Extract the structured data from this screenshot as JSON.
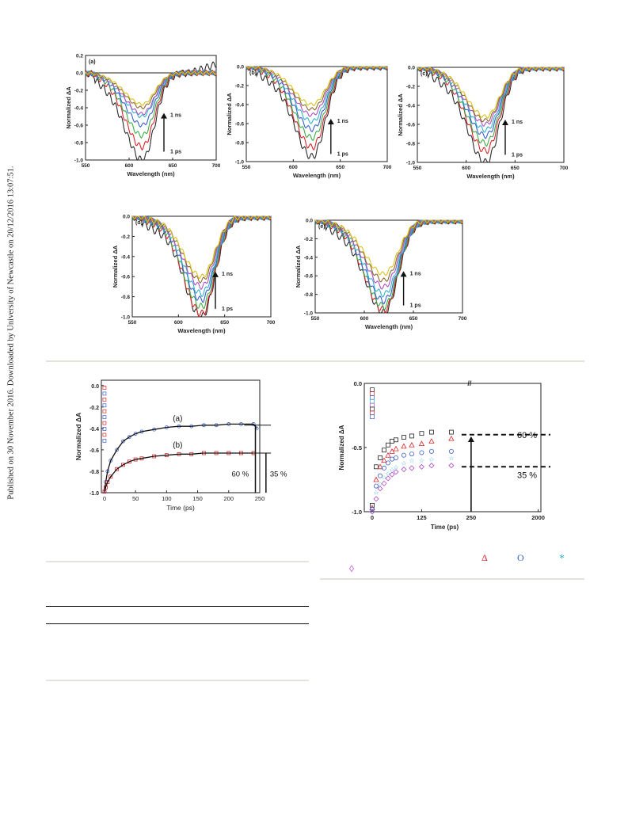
{
  "sidebar_text": "Published on 30 November 2016. Downloaded by University of Newcastle on 20/12/2016 13:07:51.",
  "colors": {
    "series": [
      "#2b2b2b",
      "#d9262b",
      "#3cae4a",
      "#3a5fcd",
      "#35b3c6",
      "#b04fc4",
      "#8b6a2c",
      "#d9c31c"
    ],
    "blue_marker": "#3a5fcd",
    "red_marker": "#d9262b",
    "fit_line": "#111111"
  },
  "figure1": {
    "panels": [
      {
        "label": "(a)",
        "xlabel": "Wavelength (nm)",
        "ylabel": "Normalized ΔA",
        "top_label": "1 ns",
        "bottom_label": "1 ps",
        "xticks": [
          "550",
          "600",
          "650",
          "700"
        ],
        "yticks": [
          "0.2",
          "0.0",
          "-0.2",
          "-0.4",
          "-0.6",
          "-0.8",
          "-1.0"
        ]
      },
      {
        "label": "(b)",
        "xlabel": "Wavelength (nm)",
        "ylabel": "Normalized ΔA",
        "top_label": "1 ns",
        "bottom_label": "1 ps",
        "xticks": [
          "550",
          "600",
          "650",
          "700"
        ],
        "yticks": [
          "0.0",
          "-0.2",
          "-0.4",
          "-0.6",
          "-0.8",
          "-1.0"
        ]
      },
      {
        "label": "(c)",
        "xlabel": "Wavelength (nm)",
        "ylabel": "Normalized ΔA",
        "top_label": "1 ns",
        "bottom_label": "1 ps",
        "xticks": [
          "550",
          "600",
          "650",
          "700"
        ],
        "yticks": [
          "0.0",
          "-0.2",
          "-0.4",
          "-0.6",
          "-0.8",
          "-1.0"
        ]
      },
      {
        "label": "(d)",
        "xlabel": "Wavelength (nm)",
        "ylabel": "Normalized ΔA",
        "top_label": "1 ns",
        "bottom_label": "1 ps",
        "xticks": [
          "550",
          "600",
          "650",
          "700"
        ],
        "yticks": [
          "0.0",
          "-0.2",
          "-0.4",
          "-0.6",
          "-0.8",
          "-1.0"
        ]
      },
      {
        "label": "(e)",
        "xlabel": "Wavelength (nm)",
        "ylabel": "Normalized ΔA",
        "top_label": "1 ns",
        "bottom_label": "1 ps",
        "xticks": [
          "550",
          "600",
          "650",
          "700"
        ],
        "yticks": [
          "0.0",
          "-0.2",
          "-0.4",
          "-0.6",
          "-0.8",
          "-1.0"
        ]
      }
    ]
  },
  "figure2": {
    "xlabel": "Time (ps)",
    "ylabel": "Normalized ΔA",
    "xticks": [
      "0",
      "50",
      "100",
      "150",
      "200",
      "250"
    ],
    "yticks": [
      "0.0",
      "-0.2",
      "-0.4",
      "-0.6",
      "-0.8",
      "-1.0"
    ],
    "label_a": "(a)",
    "label_b": "(b)",
    "pct_60": "60 %",
    "pct_35": "35 %"
  },
  "figure3": {
    "xlabel": "Time (ps)",
    "ylabel": "Normalized ΔA",
    "xticks": [
      "0",
      "125",
      "250",
      "2000"
    ],
    "yticks": [
      "0.0",
      "-0.5",
      "-1.0"
    ],
    "pct_60": "60 %",
    "pct_35": "35 %",
    "break_mark": "//"
  },
  "caption_symbols": {
    "triangle": "Δ",
    "circle": "O",
    "star": "*",
    "diamond": "◊"
  },
  "chart_data": [
    {
      "type": "line",
      "panel": "(a)",
      "xlim": [
        550,
        700
      ],
      "ylim": [
        -1.0,
        0.2
      ],
      "series_minima": [
        -1.0,
        -0.85,
        -0.72,
        -0.6,
        -0.5,
        -0.47,
        -0.4,
        -0.36
      ],
      "minimum_wavelength": 615
    },
    {
      "type": "line",
      "panel": "(b)",
      "xlim": [
        550,
        700
      ],
      "ylim": [
        -1.0,
        0.0
      ],
      "series_minima": [
        -0.95,
        -0.85,
        -0.75,
        -0.66,
        -0.58,
        -0.51,
        -0.45,
        -0.4
      ],
      "minimum_wavelength": 620
    },
    {
      "type": "line",
      "panel": "(c)",
      "xlim": [
        550,
        700
      ],
      "ylim": [
        -1.0,
        0.0
      ],
      "series_minima": [
        -1.0,
        -0.88,
        -0.8,
        -0.72,
        -0.66,
        -0.6,
        -0.56,
        -0.52
      ],
      "minimum_wavelength": 620
    },
    {
      "type": "line",
      "panel": "(d)",
      "xlim": [
        550,
        700
      ],
      "ylim": [
        -1.0,
        0.0
      ],
      "series_minima": [
        -1.0,
        -0.97,
        -0.9,
        -0.83,
        -0.77,
        -0.7,
        -0.64,
        -0.6
      ],
      "minimum_wavelength": 625
    },
    {
      "type": "line",
      "panel": "(e)",
      "xlim": [
        550,
        700
      ],
      "ylim": [
        -1.0,
        0.0
      ],
      "series_minima": [
        -1.0,
        -0.97,
        -0.93,
        -0.87,
        -0.8,
        -0.72,
        -0.65,
        -0.58
      ],
      "minimum_wavelength": 620
    },
    {
      "type": "scatter",
      "title": "",
      "xlabel": "Time (ps)",
      "ylabel": "Normalized ΔA",
      "xlim": [
        -5,
        250
      ],
      "ylim": [
        -1.0,
        0.05
      ],
      "series": [
        {
          "name": "(a)",
          "x": [
            0,
            2,
            5,
            10,
            20,
            30,
            40,
            50,
            60,
            80,
            100,
            120,
            140,
            160,
            180,
            200,
            220,
            240,
            245
          ],
          "y": [
            -0.99,
            -0.9,
            -0.8,
            -0.7,
            -0.6,
            -0.52,
            -0.48,
            -0.45,
            -0.43,
            -0.41,
            -0.39,
            -0.38,
            -0.38,
            -0.37,
            -0.37,
            -0.36,
            -0.36,
            -0.36,
            -0.4
          ]
        },
        {
          "name": "(b)",
          "x": [
            0,
            2,
            5,
            10,
            20,
            30,
            40,
            50,
            60,
            80,
            100,
            120,
            140,
            160,
            180,
            200,
            220,
            240
          ],
          "y": [
            -0.99,
            -0.95,
            -0.9,
            -0.85,
            -0.78,
            -0.74,
            -0.71,
            -0.69,
            -0.68,
            -0.66,
            -0.65,
            -0.64,
            -0.64,
            -0.63,
            -0.63,
            -0.63,
            -0.63,
            -0.63
          ]
        }
      ]
    },
    {
      "type": "scatter",
      "title": "",
      "xlabel": "Time (ps)",
      "ylabel": "Normalized ΔA",
      "ylim": [
        -1.0,
        0.0
      ],
      "series": [
        {
          "marker": "square",
          "x": [
            0,
            10,
            20,
            30,
            40,
            50,
            60,
            80,
            100,
            125,
            150,
            200
          ],
          "y": [
            -0.95,
            -0.65,
            -0.58,
            -0.52,
            -0.48,
            -0.45,
            -0.44,
            -0.42,
            -0.41,
            -0.39,
            -0.38,
            -0.38
          ]
        },
        {
          "marker": "triangle",
          "x": [
            0,
            10,
            20,
            30,
            40,
            50,
            60,
            80,
            100,
            125,
            150,
            200
          ],
          "y": [
            -0.97,
            -0.75,
            -0.65,
            -0.6,
            -0.56,
            -0.53,
            -0.51,
            -0.49,
            -0.48,
            -0.47,
            -0.45,
            -0.43
          ]
        },
        {
          "marker": "circle",
          "x": [
            0,
            10,
            20,
            30,
            40,
            50,
            60,
            80,
            100,
            125,
            150,
            200
          ],
          "y": [
            -0.98,
            -0.8,
            -0.72,
            -0.66,
            -0.62,
            -0.59,
            -0.58,
            -0.56,
            -0.55,
            -0.54,
            -0.53,
            -0.53
          ]
        },
        {
          "marker": "star",
          "x": [
            0,
            10,
            20,
            30,
            40,
            50,
            60,
            80,
            100,
            125,
            150,
            200
          ],
          "y": [
            -0.99,
            -0.85,
            -0.78,
            -0.73,
            -0.7,
            -0.67,
            -0.65,
            -0.62,
            -0.6,
            -0.6,
            -0.59,
            -0.58
          ]
        },
        {
          "marker": "diamond",
          "x": [
            0,
            10,
            20,
            30,
            40,
            50,
            60,
            80,
            100,
            125,
            150,
            200
          ],
          "y": [
            -1.0,
            -0.9,
            -0.82,
            -0.78,
            -0.74,
            -0.71,
            -0.69,
            -0.67,
            -0.66,
            -0.65,
            -0.64,
            -0.64
          ]
        }
      ]
    }
  ]
}
